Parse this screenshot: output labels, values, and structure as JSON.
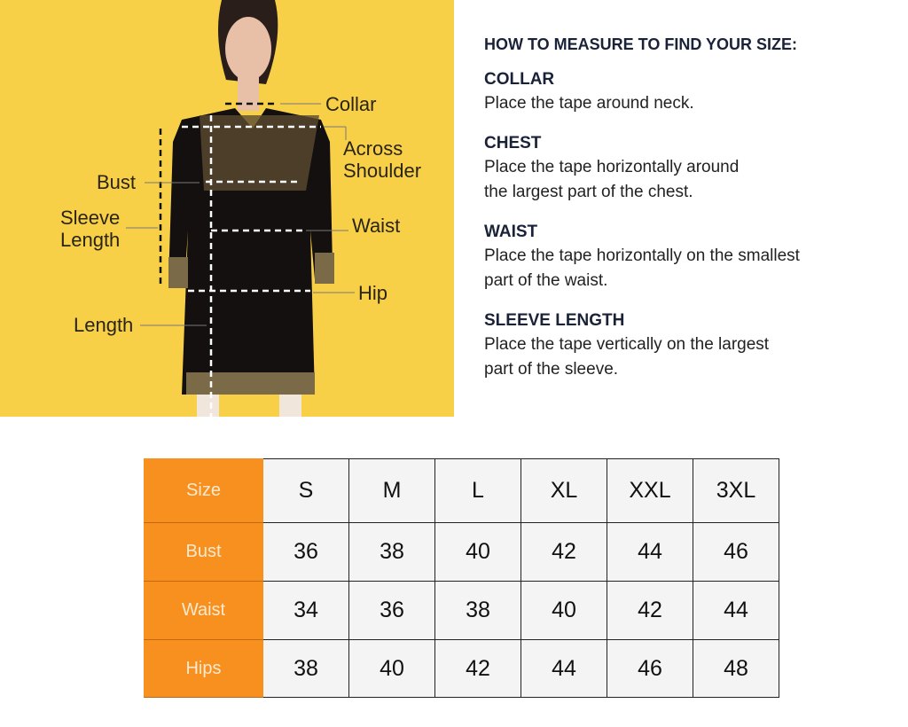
{
  "diagram": {
    "labels": {
      "collar": "Collar",
      "across_shoulder": "Across\nShoulder",
      "bust": "Bust",
      "sleeve_length": "Sleeve\nLength",
      "waist": "Waist",
      "hip": "Hip",
      "length": "Length"
    },
    "background_color": "#f8d048"
  },
  "guide": {
    "title": "HOW TO MEASURE TO FIND YOUR SIZE:",
    "sections": [
      {
        "heading": "COLLAR",
        "text": "Place the tape around neck."
      },
      {
        "heading": "CHEST",
        "text": "Place the tape horizontally around\nthe largest part of the chest."
      },
      {
        "heading": "WAIST",
        "text": "Place the tape horizontally on the smallest\npart of the waist."
      },
      {
        "heading": "SLEEVE LENGTH",
        "text": "Place the tape vertically on the largest\npart of the sleeve."
      }
    ]
  },
  "size_table": {
    "header_color": "#f7901e",
    "rows": [
      {
        "label": "Size",
        "values": [
          "S",
          "M",
          "L",
          "XL",
          "XXL",
          "3XL"
        ]
      },
      {
        "label": "Bust",
        "values": [
          "36",
          "38",
          "40",
          "42",
          "44",
          "46"
        ]
      },
      {
        "label": "Waist",
        "values": [
          "34",
          "36",
          "38",
          "40",
          "42",
          "44"
        ]
      },
      {
        "label": "Hips",
        "values": [
          "38",
          "40",
          "42",
          "44",
          "46",
          "48"
        ]
      }
    ]
  }
}
